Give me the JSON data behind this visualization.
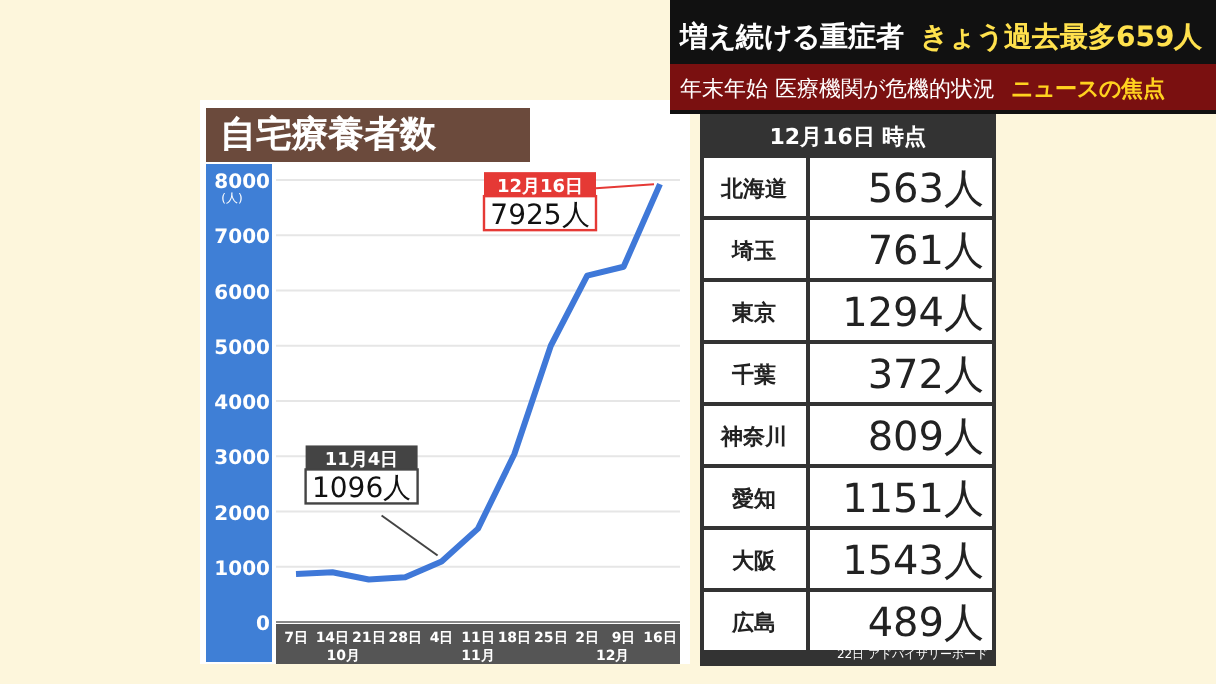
{
  "chart_data": [
    {
      "type": "line",
      "title": "自宅療養者数",
      "ylabel": "(人)",
      "categories": [
        "7日",
        "14日",
        "21日",
        "28日",
        "4日",
        "11日",
        "18日",
        "25日",
        "2日",
        "9日",
        "16日"
      ],
      "series": [
        {
          "color": "#3f78d8",
          "values": [
            870,
            900,
            770,
            810,
            1096,
            1690,
            3040,
            5000,
            6270,
            6430,
            7925
          ]
        }
      ],
      "ylim": [
        0,
        8000
      ],
      "yticks": [
        0,
        1000,
        2000,
        3000,
        4000,
        5000,
        6000,
        7000,
        8000
      ],
      "grid": "y",
      "marker": "none",
      "line_style": "solid",
      "annotations": [
        "10月",
        "11月",
        "12月",
        {
          "text": "11月4日\n1096人",
          "x": "4日",
          "y": 1096
        },
        {
          "text": "12月16日\n7925人",
          "x": "16日",
          "y": 7925
        }
      ]
    },
    {
      "type": "other",
      "title": "12月16日 時点",
      "annotations": [
        "増え続ける重症者",
        "きょう過去最多659人",
        "年末年始 医療機関が危機的状況",
        "ニュースの焦点",
        "北海道",
        "563人",
        "埼玉",
        "761人",
        "東京",
        "1294人",
        "千葉",
        "372人",
        "神奈川",
        "809人",
        "愛知",
        "1151人",
        "大阪",
        "1543人",
        "広島",
        "489人",
        "22日 アドバイザリーボード"
      ]
    }
  ]
}
